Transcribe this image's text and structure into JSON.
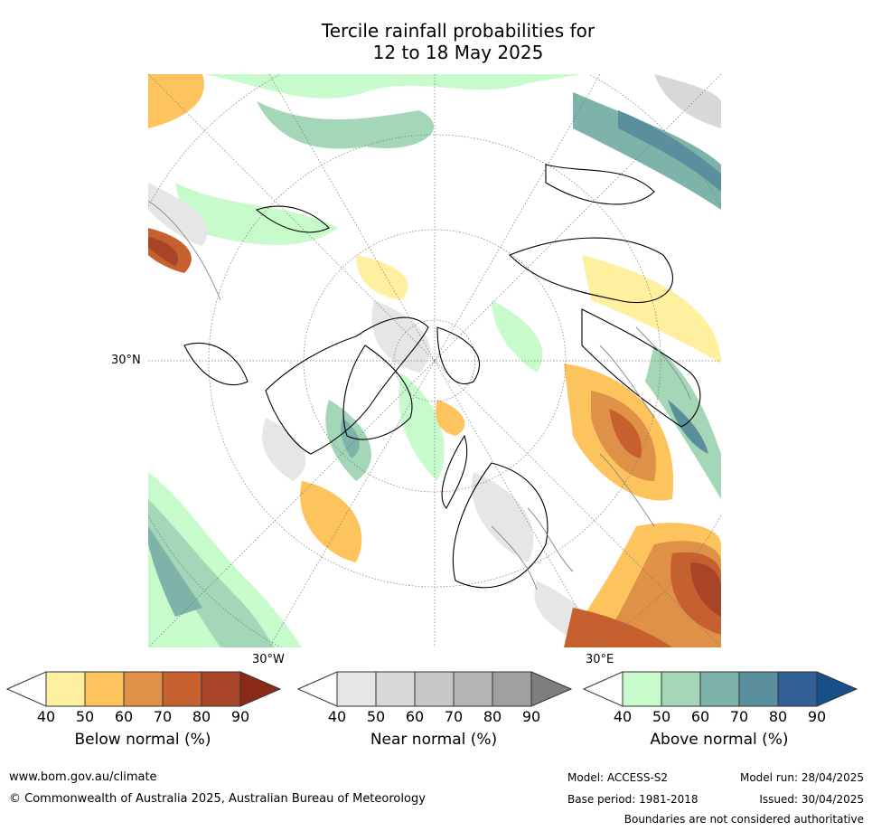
{
  "title": {
    "line1": "Tercile rainfall probabilities for",
    "line2": "12 to 18 May 2025"
  },
  "map": {
    "lat_label": "30°N",
    "lon_labels": [
      "30°W",
      "30°E"
    ]
  },
  "legends": [
    {
      "label": "Below normal (%)",
      "ticks": [
        "40",
        "50",
        "60",
        "70",
        "80",
        "90"
      ],
      "colors": [
        "#fff0a0",
        "#fdc45e",
        "#df9147",
        "#c6602e",
        "#a84427",
        "#8b2a16"
      ]
    },
    {
      "label": "Near normal (%)",
      "ticks": [
        "40",
        "50",
        "60",
        "70",
        "80",
        "90"
      ],
      "colors": [
        "#e6e6e6",
        "#d8d8d8",
        "#c7c7c7",
        "#b4b4b4",
        "#a0a0a0",
        "#7e7e7e"
      ]
    },
    {
      "label": "Above normal (%)",
      "ticks": [
        "40",
        "50",
        "60",
        "70",
        "80",
        "90"
      ],
      "colors": [
        "#c7fbcc",
        "#a3d7b7",
        "#7db3a9",
        "#5a8f9e",
        "#325f96",
        "#174f8b"
      ]
    }
  ],
  "footer": {
    "website": "www.bom.gov.au/climate",
    "copyright": "© Commonwealth of Australia 2025, Australian Bureau of Meteorology",
    "model": "Model: ACCESS-S2",
    "model_run": "Model run: 28/04/2025",
    "base_period": "Base period: 1981-2018",
    "issued": "Issued: 30/04/2025",
    "disclaimer": "Boundaries are not considered authoritative"
  }
}
